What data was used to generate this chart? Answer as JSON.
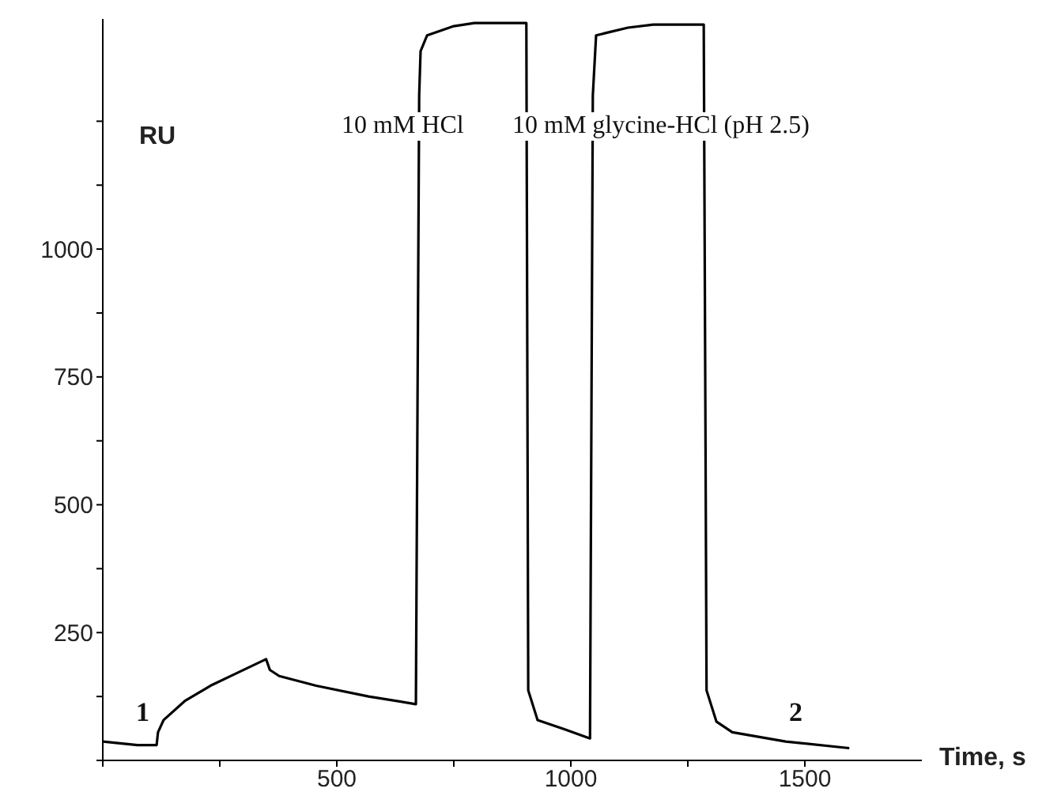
{
  "chart_data": {
    "type": "line",
    "xlabel": "Time, s",
    "ylabel": "RU",
    "x": [
      0,
      74,
      115,
      118,
      130,
      175,
      230,
      287,
      349,
      357,
      377,
      456,
      568,
      669,
      676,
      679,
      693,
      750,
      794,
      905,
      909,
      929,
      986,
      1041,
      1047,
      1054,
      1122,
      1176,
      1284,
      1290,
      1311,
      1345,
      1459,
      1595
    ],
    "series": [
      {
        "color": "#000000",
        "values": [
          37,
          30,
          30,
          55,
          79,
          116,
          146,
          171,
          198,
          177,
          165,
          146,
          125,
          110,
          1300,
          1387,
          1418,
          1436,
          1442,
          1442,
          137,
          79,
          61,
          43,
          1300,
          1418,
          1433,
          1439,
          1439,
          137,
          76,
          55,
          37,
          24
        ]
      }
    ],
    "xlim": [
      0,
      1750
    ],
    "xticks": [
      {
        "value": 0,
        "label": null
      },
      {
        "value": 250,
        "label": null
      },
      500,
      {
        "value": 750,
        "label": null
      },
      1000,
      {
        "value": 1250,
        "label": null
      },
      1500
    ],
    "ylim": [
      0,
      1450
    ],
    "yticks": [
      {
        "value": 0,
        "label": null
      },
      {
        "value": 125,
        "label": null
      },
      250,
      {
        "value": 375,
        "label": null
      },
      500,
      {
        "value": 625,
        "label": null
      },
      750,
      {
        "value": 875,
        "label": null
      },
      1000,
      {
        "value": 1125,
        "label": null
      },
      {
        "value": 1250,
        "label": null
      }
    ],
    "grid": false,
    "legend": false,
    "marker": "none",
    "line_style": "solid",
    "annotations": [
      "10 mM HCl",
      "10 mM glycine-HCl (pH 2.5)",
      "1",
      "2"
    ]
  }
}
